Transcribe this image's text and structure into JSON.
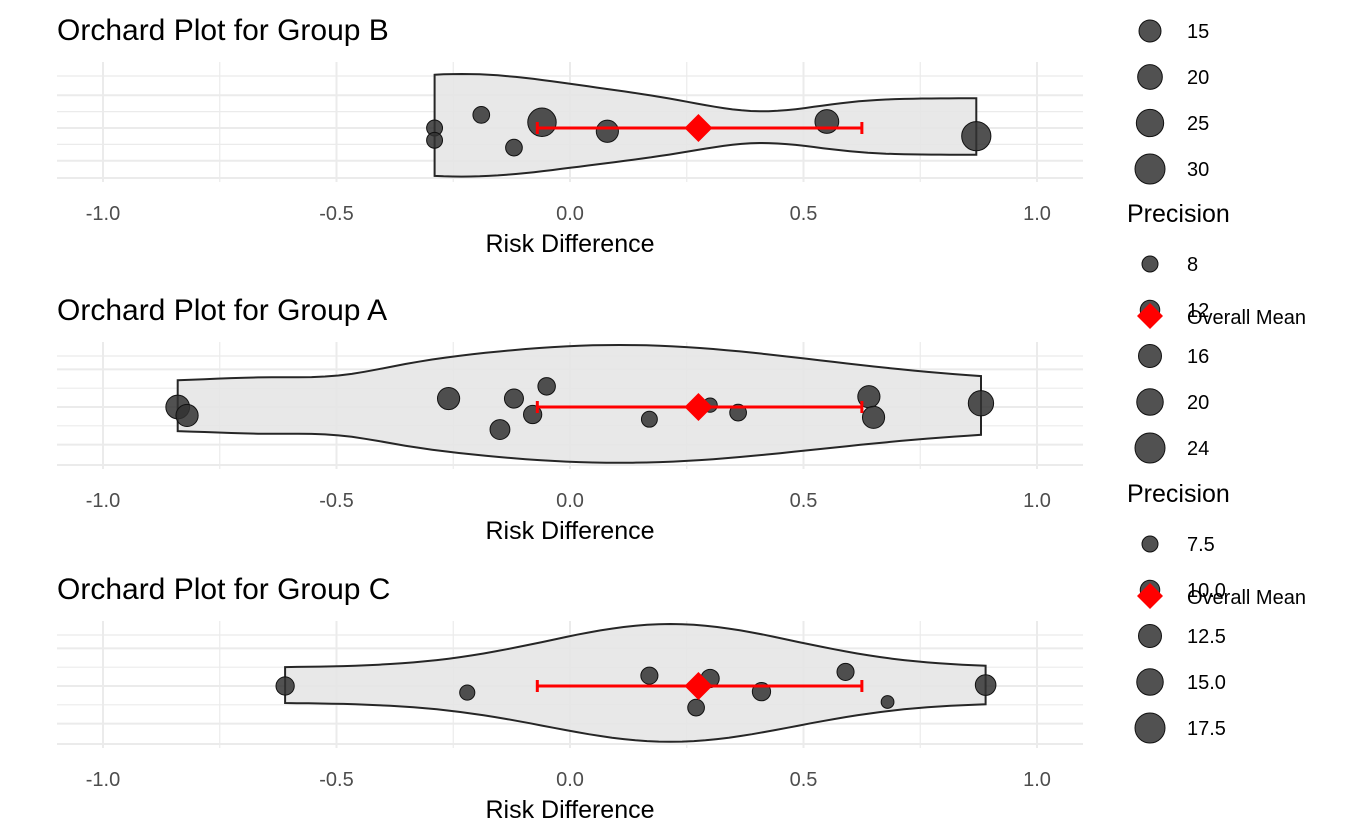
{
  "colors": {
    "point": "#333333",
    "violin_fill": "#e5e5e5",
    "violin_stroke": "#262626",
    "mean": "#ff0000",
    "grid": "#ebebeb"
  },
  "chart_data": [
    {
      "type": "orchard",
      "title": "Orchard Plot for Group B",
      "xlabel": "Risk Difference",
      "xlim": [
        -1.0,
        1.0
      ],
      "xticks": [
        "-1.0",
        "-0.5",
        "0.0",
        "0.5",
        "1.0"
      ],
      "grid": true,
      "violin_range": [
        -0.29,
        0.87
      ],
      "points": [
        {
          "x": -0.29,
          "jitter": 0.0,
          "precision": 12
        },
        {
          "x": -0.29,
          "jitter": -0.75,
          "precision": 12
        },
        {
          "x": -0.19,
          "jitter": 0.8,
          "precision": 13
        },
        {
          "x": -0.12,
          "jitter": -1.2,
          "precision": 13
        },
        {
          "x": -0.06,
          "jitter": 0.35,
          "precision": 28
        },
        {
          "x": 0.08,
          "jitter": -0.2,
          "precision": 20
        },
        {
          "x": 0.55,
          "jitter": 0.4,
          "precision": 22
        },
        {
          "x": 0.87,
          "jitter": -0.5,
          "precision": 29
        }
      ],
      "mean": {
        "label": "Overall Mean",
        "value": 0.275,
        "ci": [
          -0.07,
          0.625
        ]
      }
    },
    {
      "type": "orchard",
      "title": "Orchard Plot for Group A",
      "xlabel": "Risk Difference",
      "xlim": [
        -1.0,
        1.0
      ],
      "xticks": [
        "-1.0",
        "-0.5",
        "0.0",
        "0.5",
        "1.0"
      ],
      "grid": true,
      "violin_range": [
        -0.84,
        0.88
      ],
      "points": [
        {
          "x": -0.84,
          "jitter": 0.0,
          "precision": 22
        },
        {
          "x": -0.82,
          "jitter": -0.45,
          "precision": 20
        },
        {
          "x": -0.26,
          "jitter": 0.45,
          "precision": 20
        },
        {
          "x": -0.15,
          "jitter": -1.2,
          "precision": 17
        },
        {
          "x": -0.12,
          "jitter": 0.45,
          "precision": 16
        },
        {
          "x": -0.08,
          "jitter": -0.4,
          "precision": 15
        },
        {
          "x": -0.05,
          "jitter": 1.1,
          "precision": 14
        },
        {
          "x": 0.17,
          "jitter": -0.65,
          "precision": 12
        },
        {
          "x": 0.3,
          "jitter": 0.1,
          "precision": 10
        },
        {
          "x": 0.36,
          "jitter": -0.3,
          "precision": 13
        },
        {
          "x": 0.64,
          "jitter": 0.55,
          "precision": 20
        },
        {
          "x": 0.65,
          "jitter": -0.55,
          "precision": 20
        },
        {
          "x": 0.88,
          "jitter": 0.2,
          "precision": 24
        }
      ],
      "mean": {
        "label": "Overall Mean",
        "value": 0.275,
        "ci": [
          -0.07,
          0.625
        ]
      },
      "legend": {
        "title": "Precision",
        "sizes": [
          {
            "label": "8",
            "precision": 8
          },
          {
            "label": "12",
            "precision": 12
          },
          {
            "label": "16",
            "precision": 16
          },
          {
            "label": "20",
            "precision": 20
          },
          {
            "label": "24",
            "precision": 24
          }
        ],
        "mean_label": "Overall Mean"
      }
    },
    {
      "type": "orchard",
      "title": "Orchard Plot for Group C",
      "xlabel": "Risk Difference",
      "xlim": [
        -1.0,
        1.0
      ],
      "xticks": [
        "-1.0",
        "-0.5",
        "0.0",
        "0.5",
        "1.0"
      ],
      "grid": true,
      "violin_range": [
        -0.61,
        0.89
      ],
      "points": [
        {
          "x": -0.61,
          "jitter": 0.0,
          "precision": 15
        },
        {
          "x": -0.22,
          "jitter": -0.35,
          "precision": 11
        },
        {
          "x": 0.17,
          "jitter": 0.55,
          "precision": 13.5
        },
        {
          "x": 0.27,
          "jitter": -1.15,
          "precision": 13
        },
        {
          "x": 0.3,
          "jitter": 0.4,
          "precision": 15
        },
        {
          "x": 0.41,
          "jitter": -0.3,
          "precision": 15
        },
        {
          "x": 0.59,
          "jitter": 0.75,
          "precision": 13.5
        },
        {
          "x": 0.68,
          "jitter": -0.85,
          "precision": 8
        },
        {
          "x": 0.89,
          "jitter": 0.05,
          "precision": 18
        }
      ],
      "mean": {
        "label": "Overall Mean",
        "value": 0.275,
        "ci": [
          -0.07,
          0.625
        ]
      },
      "legend": {
        "title": "Precision",
        "sizes": [
          {
            "label": "7.5",
            "precision": 7.5
          },
          {
            "label": "10.0",
            "precision": 10
          },
          {
            "label": "12.5",
            "precision": 12.5
          },
          {
            "label": "15.0",
            "precision": 15
          },
          {
            "label": "17.5",
            "precision": 17.5
          }
        ],
        "mean_label": "Overall Mean"
      }
    }
  ],
  "top_legend": {
    "sizes": [
      {
        "label": "15",
        "precision": 15
      },
      {
        "label": "20",
        "precision": 20
      },
      {
        "label": "25",
        "precision": 25
      },
      {
        "label": "30",
        "precision": 30
      }
    ]
  }
}
